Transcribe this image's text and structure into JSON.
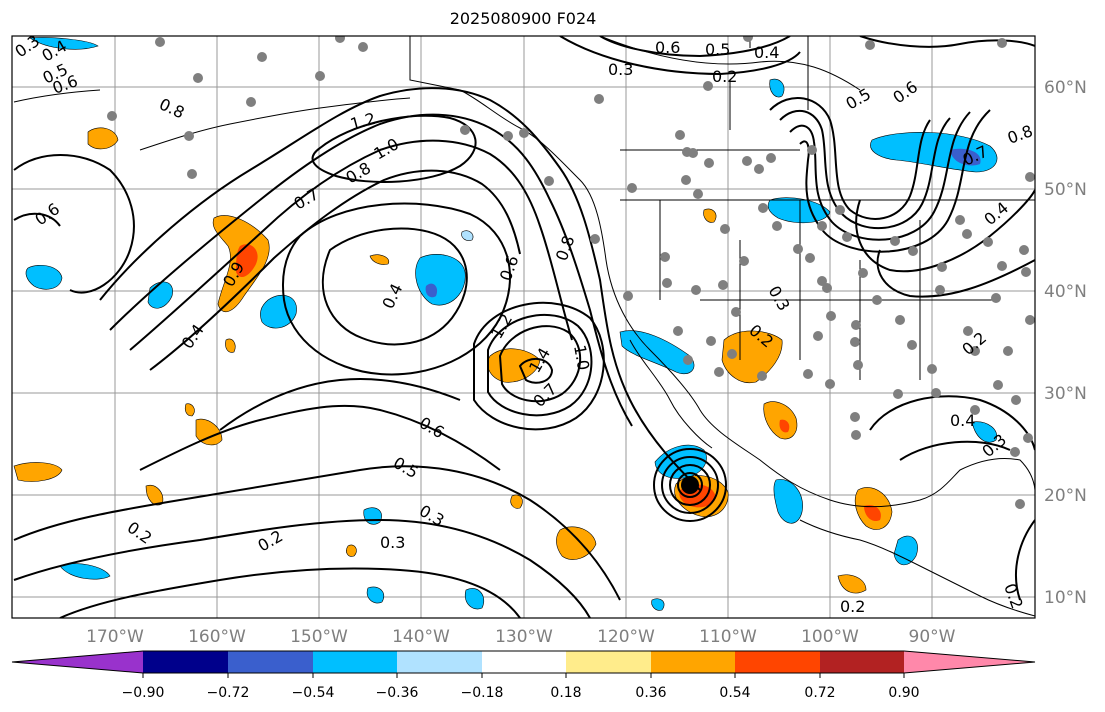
{
  "title": "2025080900 F024",
  "lon_ticks": [
    "170°W",
    "160°W",
    "150°W",
    "140°W",
    "130°W",
    "120°W",
    "110°W",
    "100°W",
    "90°W"
  ],
  "lat_ticks": [
    "60°N",
    "50°N",
    "40°N",
    "30°N",
    "20°N",
    "10°N"
  ],
  "colorbar": {
    "labels": [
      "−0.90",
      "−0.72",
      "−0.54",
      "−0.36",
      "−0.18",
      "0.18",
      "0.36",
      "0.54",
      "0.72",
      "0.90"
    ],
    "colors": [
      "#9932cc",
      "#00008b",
      "#3a5fcd",
      "#00bfff",
      "#b0e2ff",
      "#ffffff",
      "#ffec8b",
      "#ffa500",
      "#ff4500",
      "#b22222",
      "#ff88aa"
    ]
  },
  "contour_labels": [
    "0.3",
    "0.4",
    "0.5",
    "0.6",
    "0.6",
    "0.5",
    "0.4",
    "0.3",
    "0.2",
    "0.8",
    "1.2",
    "1.0",
    "0.8",
    "0.7",
    "0.6",
    "0.4",
    "0.9",
    "0.4",
    "0.6",
    "0.8",
    "1.2",
    "1.4",
    "1.0",
    "0.7",
    "0.6",
    "0.5",
    "0.3",
    "0.2",
    "0.2",
    "0.3",
    "0.3",
    "0.2",
    "0.5",
    "0.6",
    "0.8",
    "0.7",
    "0.4",
    "0.2",
    "0.4",
    "0.3",
    "0.2",
    "0.2"
  ],
  "colors": {
    "shade_blue": "#00bfff",
    "shade_light_blue": "#b0e2ff",
    "shade_dark_blue": "#3a5fcd",
    "shade_orange": "#ffa500",
    "shade_red": "#ff4500",
    "grid": "#7f7f7f",
    "station": "#7f7f7f"
  }
}
